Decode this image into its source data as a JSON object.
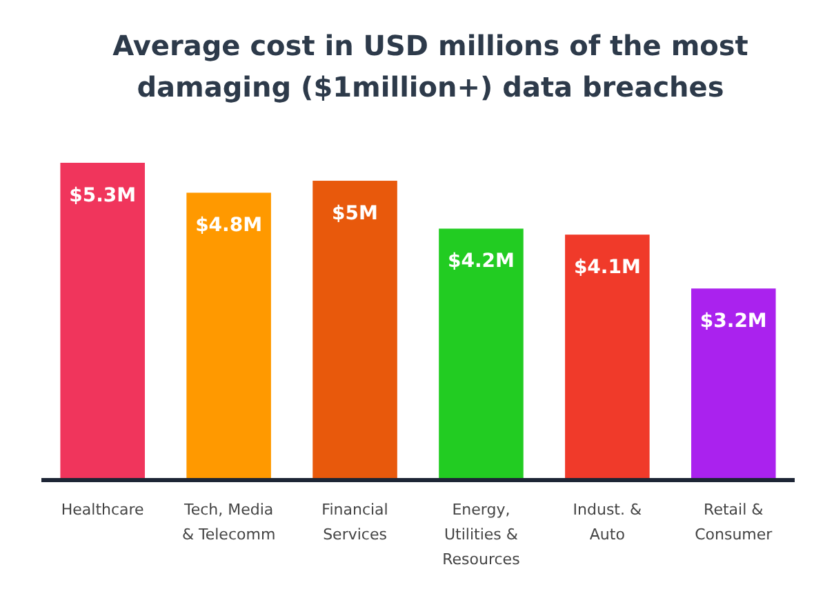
{
  "chart_data": {
    "type": "bar",
    "title": "Average cost in USD millions of the most damaging ($1million+) data breaches",
    "categories": [
      "Healthcare",
      "Tech, Media & Telecomm",
      "Financial Services",
      "Energy, Utilities & Resources",
      "Indust. & Auto",
      "Retail & Consumer"
    ],
    "values": [
      5.3,
      4.8,
      5,
      4.2,
      4.1,
      3.2
    ],
    "colors": [
      "#f0355c",
      "#ff9900",
      "#e8590c",
      "#22cc22",
      "#f03a2a",
      "#aa22ee"
    ],
    "value_labels": [
      "$5.3M",
      "$4.8M",
      "$5M",
      "$4.2M",
      "$4.1M",
      "$3.2M"
    ]
  }
}
